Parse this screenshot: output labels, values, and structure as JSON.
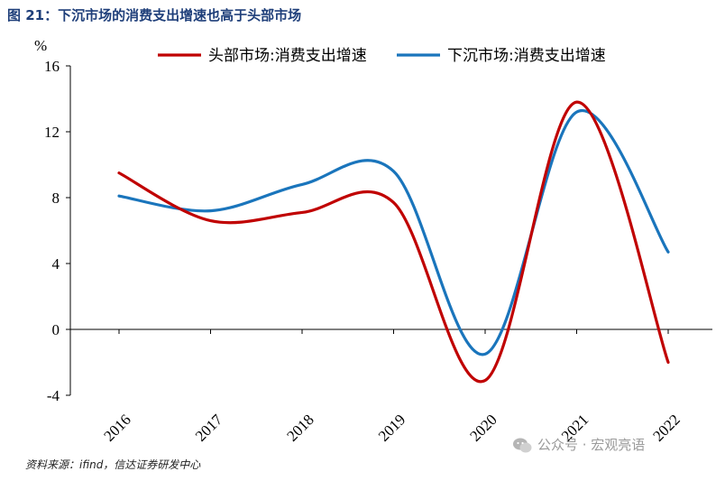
{
  "figure": {
    "title": "图 21：下沉市场的消费支出增速也高于头部市场",
    "source": "资料来源：ifind，信达证券研发中心",
    "watermark": "公众号 · 宏观亮语"
  },
  "chart_data": {
    "type": "line",
    "title": "下沉市场的消费支出增速也高于头部市场",
    "ylabel": "%",
    "xlabel": "",
    "ylim": [
      -4,
      16
    ],
    "yticks": [
      -4,
      0,
      4,
      8,
      12,
      16
    ],
    "categories": [
      "2016",
      "2017",
      "2018",
      "2019",
      "2020",
      "2021",
      "2022"
    ],
    "legend_position": "top",
    "series": [
      {
        "name": "头部市场:消费支出增速",
        "color": "#c00000",
        "values": [
          9.5,
          6.6,
          7.1,
          7.7,
          -3.1,
          13.8,
          -2.0
        ]
      },
      {
        "name": "下沉市场:消费支出增速",
        "color": "#1a75bc",
        "values": [
          8.1,
          7.2,
          8.8,
          9.6,
          -1.5,
          13.2,
          4.7
        ]
      }
    ]
  }
}
